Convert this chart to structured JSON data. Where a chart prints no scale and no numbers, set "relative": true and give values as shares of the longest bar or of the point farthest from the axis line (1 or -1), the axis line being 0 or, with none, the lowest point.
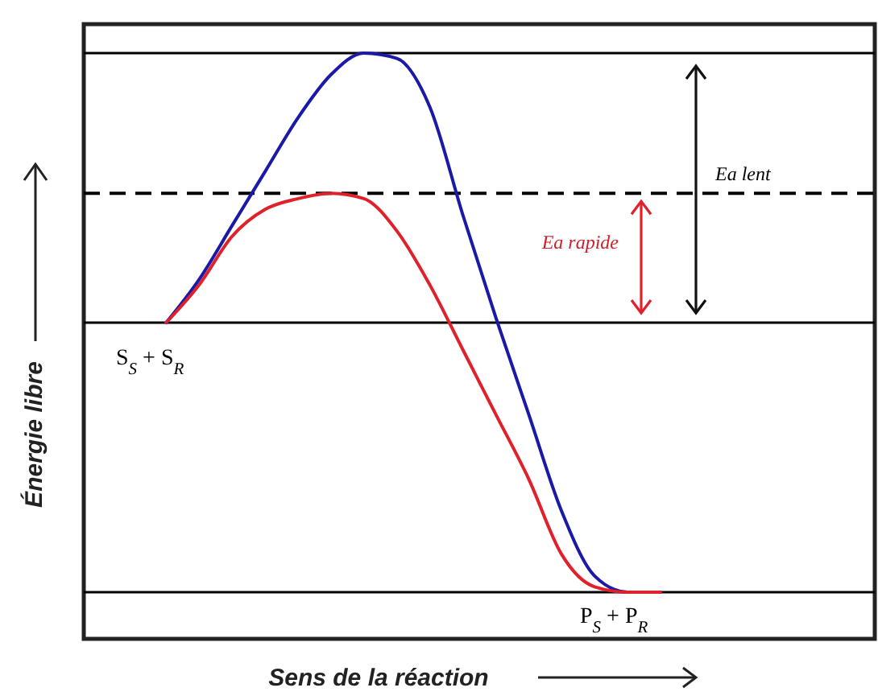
{
  "chart_data": {
    "type": "line",
    "relative": true,
    "xlabel": "Sens de la réaction",
    "ylabel": "Énergie libre",
    "categories": [
      null,
      null,
      null,
      null,
      null,
      null,
      null,
      null,
      null,
      null,
      null,
      null,
      null,
      null,
      null,
      null,
      null,
      null,
      null,
      null,
      null,
      null,
      null,
      null
    ],
    "series": [
      {
        "color": "#1a1aa6",
        "values": [
          null,
          null,
          0.5,
          0.58,
          0.68,
          0.78,
          0.88,
          0.96,
          1,
          0.99,
          0.9,
          0.7,
          0.51,
          0.33,
          0.15,
          0.03,
          0,
          0,
          null,
          null,
          null,
          null,
          null,
          null
        ]
      },
      {
        "color": "#e0202a",
        "values": [
          null,
          null,
          0.5,
          0.57,
          0.66,
          0.71,
          0.73,
          0.74,
          0.73,
          0.67,
          0.57,
          0.45,
          0.33,
          0.21,
          0.07,
          0.01,
          0,
          0,
          null,
          null,
          null,
          null,
          null,
          null
        ]
      }
    ],
    "ref_lines": [
      {
        "axis": "y",
        "value": 1,
        "color": "#000000",
        "line_style": "solid"
      },
      {
        "axis": "y",
        "value": 0.74,
        "color": "#000000",
        "line_style": "dashed"
      },
      {
        "axis": "y",
        "value": 0.5,
        "color": "#000000",
        "line_style": "solid"
      },
      {
        "axis": "y",
        "value": 0,
        "color": "#000000",
        "line_style": "solid"
      }
    ],
    "annotations": [
      "Ea lent",
      "Ea rapide",
      "S$_{S}$ + S$_{R}$",
      "P$_{S}$ + P$_{R}$"
    ],
    "marker": "none",
    "line_style": "solid"
  }
}
